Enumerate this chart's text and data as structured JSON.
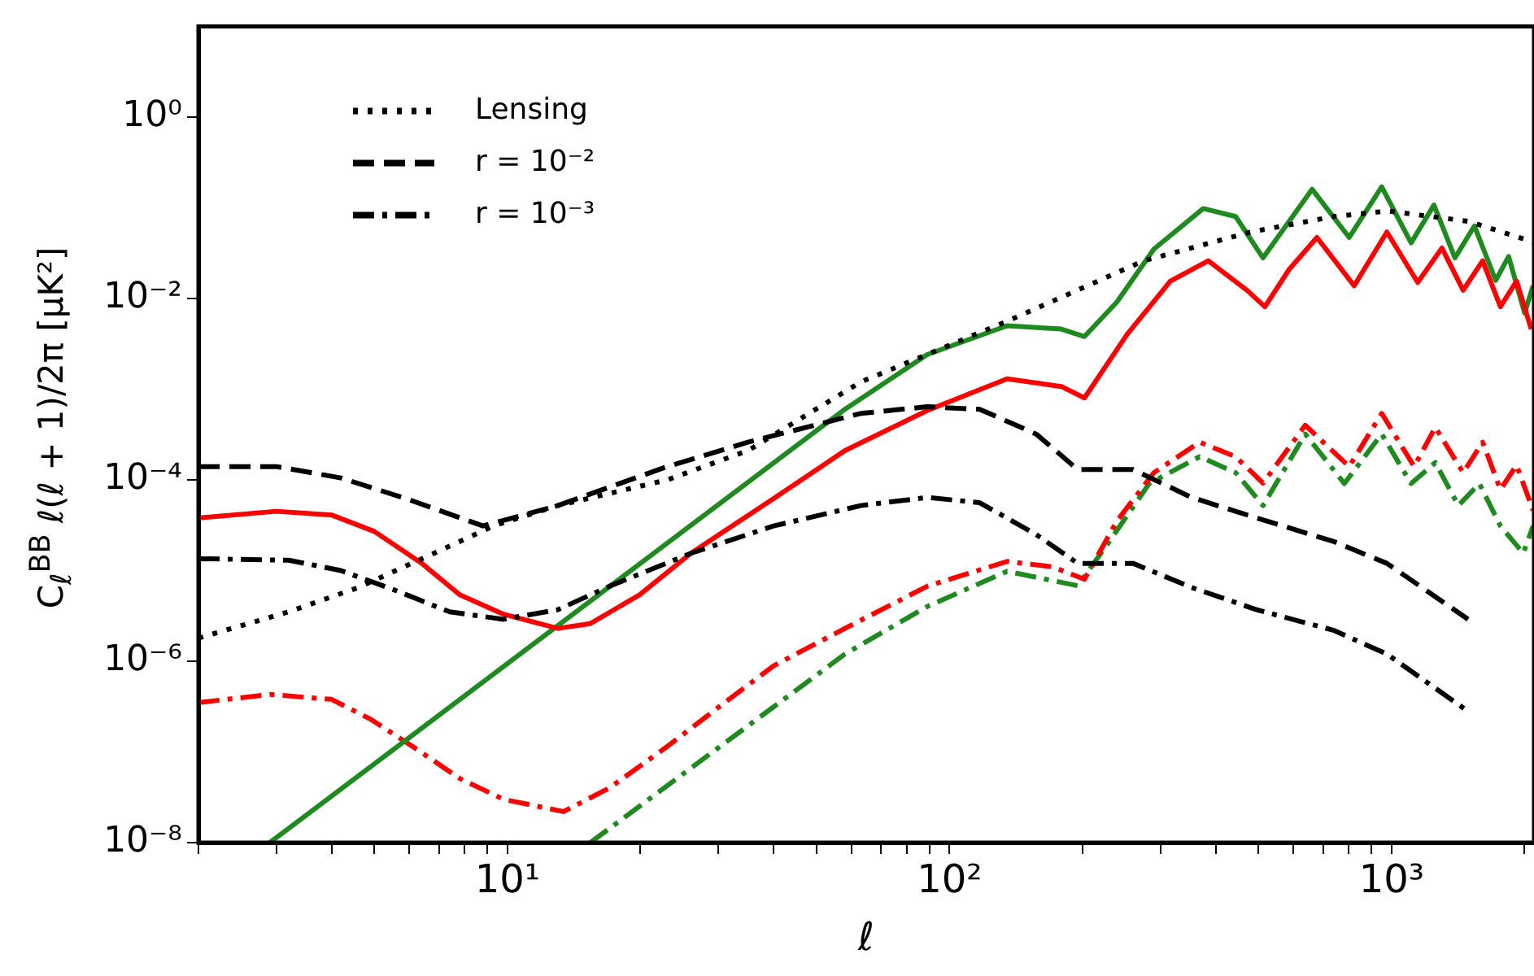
{
  "chart_data": {
    "type": "line",
    "xlabel": "ℓ",
    "ylabel": "C$_{ℓ}$$^{BB}$ ℓ(ℓ + 1)/2π [μK²]",
    "log": "xy",
    "legend": "top left",
    "xlim": [
      2,
      2100
    ],
    "ylim": [
      1e-08,
      10
    ],
    "xticks": [
      {
        "value": 2,
        "label": null
      },
      {
        "value": 3,
        "label": null
      },
      {
        "value": 4,
        "label": null
      },
      {
        "value": 5,
        "label": null
      },
      {
        "value": 6,
        "label": null
      },
      {
        "value": 7,
        "label": null
      },
      {
        "value": 8,
        "label": null
      },
      {
        "value": 9,
        "label": null
      },
      {
        "value": 10,
        "label": "10¹"
      },
      {
        "value": 20,
        "label": null
      },
      {
        "value": 30,
        "label": null
      },
      {
        "value": 40,
        "label": null
      },
      {
        "value": 50,
        "label": null
      },
      {
        "value": 60,
        "label": null
      },
      {
        "value": 70,
        "label": null
      },
      {
        "value": 80,
        "label": null
      },
      {
        "value": 90,
        "label": null
      },
      {
        "value": 100,
        "label": "10²"
      },
      {
        "value": 200,
        "label": null
      },
      {
        "value": 300,
        "label": null
      },
      {
        "value": 400,
        "label": null
      },
      {
        "value": 500,
        "label": null
      },
      {
        "value": 600,
        "label": null
      },
      {
        "value": 700,
        "label": null
      },
      {
        "value": 800,
        "label": null
      },
      {
        "value": 900,
        "label": null
      },
      {
        "value": 1000,
        "label": "10³"
      },
      {
        "value": 2000,
        "label": null
      }
    ],
    "yticks": [
      {
        "value": 1e-08,
        "label": "10⁻⁸"
      },
      {
        "value": 1e-06,
        "label": "10⁻⁶"
      },
      {
        "value": 0.0001,
        "label": "10⁻⁴"
      },
      {
        "value": 0.01,
        "label": "10⁻²"
      },
      {
        "value": 1,
        "label": "10⁰"
      }
    ],
    "series": [
      {
        "name": "Lensing",
        "color": "#000000",
        "line_style": "dotted",
        "x": [
          2,
          3.2,
          4.6,
          6.3,
          9.3,
          13,
          23,
          35,
          63,
          135,
          275,
          480,
          740,
          980,
          1490,
          2090
        ],
        "values": [
          1.8e-06,
          3.5e-06,
          6.5e-06,
          1.3e-05,
          3.1e-05,
          5.2e-05,
          0.0001,
          0.00021,
          0.0012,
          0.0056,
          0.026,
          0.054,
          0.08,
          0.092,
          0.071,
          0.042
        ]
      },
      {
        "name": "r = 10⁻²",
        "color": "#000000",
        "line_style": "dashed",
        "x": [
          2,
          3,
          4.2,
          5.9,
          8.8,
          13,
          23,
          35,
          63,
          89,
          117,
          157,
          195,
          260,
          353,
          495,
          738,
          976,
          1490
        ],
        "values": [
          0.00014,
          0.00014,
          0.000105,
          6.2e-05,
          3.1e-05,
          5.2e-05,
          0.00014,
          0.00026,
          0.00054,
          0.00064,
          0.0006,
          0.00032,
          0.00013,
          0.00013,
          6.4e-05,
          3.8e-05,
          2.1e-05,
          1.2e-05,
          2.9e-06
        ]
      },
      {
        "name": "r = 10⁻³",
        "color": "#000000",
        "line_style": "dashdot",
        "x": [
          2,
          3.2,
          4.2,
          5.6,
          7.4,
          9.8,
          13,
          17,
          26,
          40,
          63,
          89,
          117,
          157,
          195,
          260,
          353,
          495,
          738,
          976,
          1490
        ],
        "values": [
          1.35e-05,
          1.3e-05,
          1e-05,
          6e-06,
          3.5e-06,
          2.9e-06,
          3.7e-06,
          6.7e-06,
          1.55e-05,
          3.1e-05,
          5.2e-05,
          6.4e-05,
          5.6e-05,
          2.5e-05,
          1.2e-05,
          1.2e-05,
          6.5e-06,
          3.7e-06,
          2.2e-06,
          1.2e-06,
          2.8e-07
        ]
      },
      {
        "color": "#ff0000",
        "line_style": "solid",
        "x": [
          2,
          3,
          4,
          5,
          6.4,
          7.8,
          9.8,
          13,
          15.4,
          19.9,
          26,
          40,
          58,
          89,
          135,
          179,
          202,
          252,
          316,
          385,
          471,
          517,
          587,
          678,
          823,
          976,
          1146,
          1300,
          1452,
          1607,
          1763,
          1918,
          2070
        ],
        "values": [
          3.8e-05,
          4.5e-05,
          4.1e-05,
          2.7e-05,
          1.2e-05,
          5.4e-06,
          3.3e-06,
          2.3e-06,
          2.6e-06,
          5.4e-06,
          1.55e-05,
          6.2e-05,
          0.00021,
          0.00058,
          0.0013,
          0.00107,
          0.0008,
          0.004,
          0.0155,
          0.026,
          0.0123,
          0.0081,
          0.021,
          0.047,
          0.0138,
          0.054,
          0.015,
          0.036,
          0.0123,
          0.026,
          0.0081,
          0.0155,
          0.0046
        ]
      },
      {
        "color": "#1f8a1f",
        "line_style": "solid",
        "x": [
          2.9,
          58,
          89,
          135,
          179,
          202,
          239,
          290,
          375,
          444,
          512,
          661,
          802,
          950,
          1107,
          1247,
          1391,
          1540,
          1720,
          1840,
          2000,
          2090
        ],
        "values": [
          1e-08,
          0.0006,
          0.0024,
          0.005,
          0.0046,
          0.0038,
          0.0091,
          0.035,
          0.098,
          0.08,
          0.028,
          0.16,
          0.047,
          0.17,
          0.041,
          0.107,
          0.028,
          0.063,
          0.0158,
          0.029,
          0.0069,
          0.0138
        ]
      },
      {
        "color": "#ff0000",
        "line_style": "dashdot",
        "x": [
          2,
          2.9,
          4,
          4.9,
          6.1,
          7.8,
          9.8,
          13.4,
          17,
          23,
          30,
          40,
          58,
          89,
          135,
          171,
          202,
          239,
          290,
          368,
          444,
          512,
          638,
          802,
          950,
          1125,
          1256,
          1452,
          1607,
          1763,
          1918,
          2090
        ],
        "values": [
          3.5e-07,
          4.3e-07,
          3.8e-07,
          2.3e-07,
          1.15e-07,
          5.1e-08,
          3e-08,
          2.2e-08,
          4e-08,
          1.15e-07,
          3.1e-07,
          8.9e-07,
          2.3e-06,
          6.7e-06,
          1.26e-05,
          1.1e-05,
          8e-06,
          3.5e-05,
          0.00012,
          0.00026,
          0.00018,
          9.2e-05,
          0.0004,
          0.00014,
          0.00054,
          0.00014,
          0.00038,
          0.00012,
          0.00026,
          7.8e-05,
          0.000145,
          4.6e-05
        ]
      },
      {
        "color": "#1f8a1f",
        "line_style": "dashdot",
        "x": [
          15.4,
          58,
          89,
          135,
          195,
          225,
          283,
          368,
          444,
          512,
          638,
          782,
          950,
          1107,
          1256,
          1416,
          1580,
          1763,
          1986,
          2090
        ],
        "values": [
          1e-08,
          1.2e-06,
          4e-06,
          9.8e-06,
          6.8e-06,
          1.8e-05,
          9.1e-05,
          0.00018,
          0.00012,
          5.2e-05,
          0.00032,
          9.1e-05,
          0.00032,
          9.1e-05,
          0.000155,
          5.2e-05,
          9.1e-05,
          3.1e-05,
          1.55e-05,
          3.1e-05
        ]
      }
    ]
  }
}
